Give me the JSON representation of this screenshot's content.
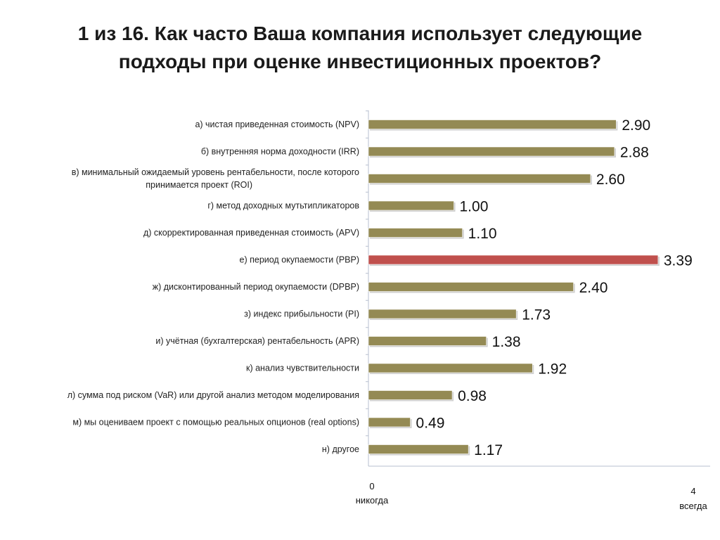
{
  "chart_data": {
    "type": "bar",
    "orientation": "horizontal",
    "title": [
      "1 из 16. Как часто Ваша компания использует следующие",
      "подходы при оценке инвестиционных проектов?"
    ],
    "categories": [
      [
        "а) чистая приведенная стоимость (NPV)"
      ],
      [
        "б) внутренняя норма доходности (IRR)"
      ],
      [
        "в) минимальный ожидаемый уровень рентабельности, после которого",
        "принимается проект (ROI)"
      ],
      [
        "г) метод доходных мутьтипликаторов"
      ],
      [
        "д) скорректированная приведенная стоимость (APV)"
      ],
      [
        "е) период окупаемости (PBP)"
      ],
      [
        "ж) дисконтированный период окупаемости (DPBP)"
      ],
      [
        "з) индекс прибыльности (PI)"
      ],
      [
        "и) учётная (бухгалтерская) рентабельность (APR)"
      ],
      [
        "к) анализ чувствительности"
      ],
      [
        "л) сумма под риском (VaR) или другой анализ методом моделирования"
      ],
      [
        "м) мы оцениваем проект с помощью реальных опционов (real options)"
      ],
      [
        "н) другое"
      ]
    ],
    "values": [
      2.9,
      2.88,
      2.6,
      1.0,
      1.1,
      3.39,
      2.4,
      1.73,
      1.38,
      1.92,
      0.98,
      0.49,
      1.17
    ],
    "value_labels": [
      "2.90",
      "2.88",
      "2.60",
      "1.00",
      "1.10",
      "3.39",
      "2.40",
      "1.73",
      "1.38",
      "1.92",
      "0.98",
      "0.49",
      "1.17"
    ],
    "highlight_index": 5,
    "xlim": [
      0,
      4
    ],
    "x_axis_min_label": [
      "0",
      "никогда"
    ],
    "x_axis_max_label": [
      "4",
      "всегда"
    ],
    "colors": {
      "bar": "#948a54",
      "highlight": "#c0504d",
      "axis": "#b7bfcf"
    }
  }
}
